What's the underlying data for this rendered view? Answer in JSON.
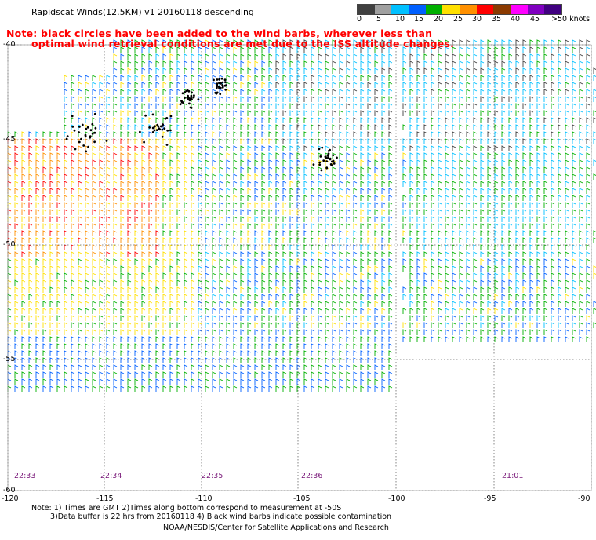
{
  "title": "Rapidscat Winds(12.5KM) v1 20160118 descending",
  "notice": {
    "line1": "Note: black circles have been added to the wind barbs, wherever less than",
    "line2": "optimal wind retrieval conditions are met due to the ISS altitude changes."
  },
  "colorbar": {
    "labels": [
      "0",
      "5",
      "10",
      "15",
      "20",
      "25",
      "30",
      "35",
      "40",
      "45",
      ">50 knots"
    ],
    "colors": [
      "#404040",
      "#a0a0a0",
      "#00c0ff",
      "#0060ff",
      "#00b000",
      "#ffe000",
      "#ff9000",
      "#ff0000",
      "#8b3a00",
      "#ff00ff",
      "#8000c0",
      "#400080"
    ]
  },
  "map": {
    "lat_labels": [
      "-40",
      "-45",
      "-50",
      "-55",
      "-60"
    ],
    "lon_labels": [
      "-120",
      "-115",
      "-110",
      "-105",
      "-100",
      "-95",
      "-90"
    ],
    "time_labels": [
      "22:33",
      "22:34",
      "22:35",
      "22:36",
      "21:01"
    ]
  },
  "footer": {
    "line1": "Note: 1) Times are GMT 2)Times along bottom correspond to measurement at -50S",
    "line2": "3)Data buffer is 22 hrs from 20160118 4) Black wind barbs indicate possible contamination",
    "line3": "NOAA/NESDIS/Center for Satellite Applications and Research"
  }
}
